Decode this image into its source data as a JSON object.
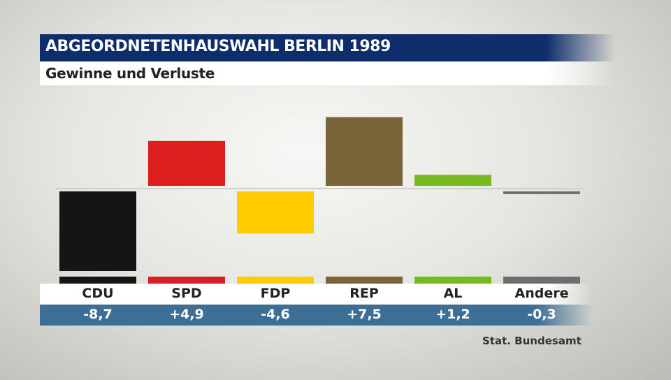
{
  "header": {
    "title": "ABGEORDNETENHAUSWAHL BERLIN 1989",
    "subtitle": "Gewinne und Verluste"
  },
  "source": "Stat. Bundesamt",
  "chart_data": {
    "type": "bar",
    "title": "ABGEORDNETENHAUSWAHL BERLIN 1989",
    "subtitle": "Gewinne und Verluste",
    "categories": [
      "CDU",
      "SPD",
      "FDP",
      "REP",
      "AL",
      "Andere"
    ],
    "values": [
      -8.7,
      4.9,
      -4.6,
      7.5,
      1.2,
      -0.3
    ],
    "value_labels": [
      "-8,7",
      "+4,9",
      "-4,6",
      "+7,5",
      "+1,2",
      "-0,3"
    ],
    "colors": [
      "#151515",
      "#dc1e1e",
      "#ffcc00",
      "#7a6439",
      "#78b91e",
      "#6e6e6e"
    ],
    "baseline_color": "#d0d0d0",
    "label_bar_color": "#3d6e96",
    "grid": false,
    "legend": "none"
  }
}
